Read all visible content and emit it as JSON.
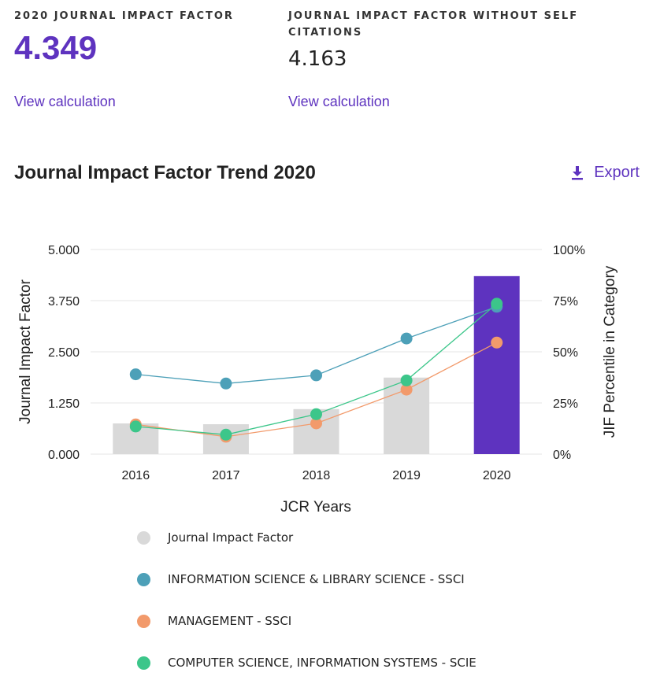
{
  "metrics": {
    "jif": {
      "label": "2020 JOURNAL IMPACT FACTOR",
      "value": "4.349",
      "link": "View calculation"
    },
    "jif_no_self": {
      "label_line1": "JOURNAL IMPACT FACTOR WITHOUT SELF",
      "label_line2": "CITATIONS",
      "value": "4.163",
      "link": "View calculation"
    }
  },
  "trend": {
    "title": "Journal Impact Factor Trend 2020",
    "export_label": "Export",
    "export_icon": "download-icon"
  },
  "colors": {
    "accent": "#5e33bf",
    "bar": "#d9d9d9",
    "bar_highlight": "#5e33bf",
    "info_science": "#4da0b8",
    "management": "#f29a6b",
    "computer_science": "#3cc68a"
  },
  "chart_data": {
    "type": "bar",
    "categories": [
      "2016",
      "2017",
      "2018",
      "2019",
      "2020"
    ],
    "xlabel": "JCR Years",
    "ylabel": "Journal Impact Factor",
    "y2label": "JIF Percentile in Category",
    "ylim": [
      0,
      5
    ],
    "y2lim": [
      0,
      100
    ],
    "y_ticks": [
      "0.000",
      "1.250",
      "2.500",
      "3.750",
      "5.000"
    ],
    "y2_ticks": [
      "0%",
      "25%",
      "50%",
      "75%",
      "100%"
    ],
    "grid": true,
    "highlight_category": "2020",
    "bars": {
      "name": "Journal Impact Factor",
      "values": [
        0.75,
        0.73,
        1.1,
        1.87,
        4.349
      ]
    },
    "series": [
      {
        "name": "INFORMATION SCIENCE & LIBRARY SCIENCE - SSCI",
        "type": "line",
        "axis": "right",
        "values": [
          39,
          34.5,
          38.5,
          56.5,
          72
        ],
        "color": "#4da0b8"
      },
      {
        "name": "MANAGEMENT - SSCI",
        "type": "line",
        "axis": "right",
        "values": [
          14.5,
          8.5,
          15,
          31.5,
          54.5
        ],
        "color": "#f29a6b"
      },
      {
        "name": "COMPUTER SCIENCE, INFORMATION SYSTEMS - SCIE",
        "type": "line",
        "axis": "right",
        "values": [
          13.5,
          9.5,
          19.5,
          36,
          73.5
        ],
        "color": "#3cc68a"
      }
    ],
    "legend": {
      "position": "bottom",
      "items": [
        {
          "label": "Journal Impact Factor",
          "color": "#d9d9d9"
        },
        {
          "label": "INFORMATION SCIENCE & LIBRARY SCIENCE - SSCI",
          "color": "#4da0b8"
        },
        {
          "label": "MANAGEMENT - SSCI",
          "color": "#f29a6b"
        },
        {
          "label": "COMPUTER SCIENCE, INFORMATION SYSTEMS - SCIE",
          "color": "#3cc68a"
        }
      ]
    }
  }
}
